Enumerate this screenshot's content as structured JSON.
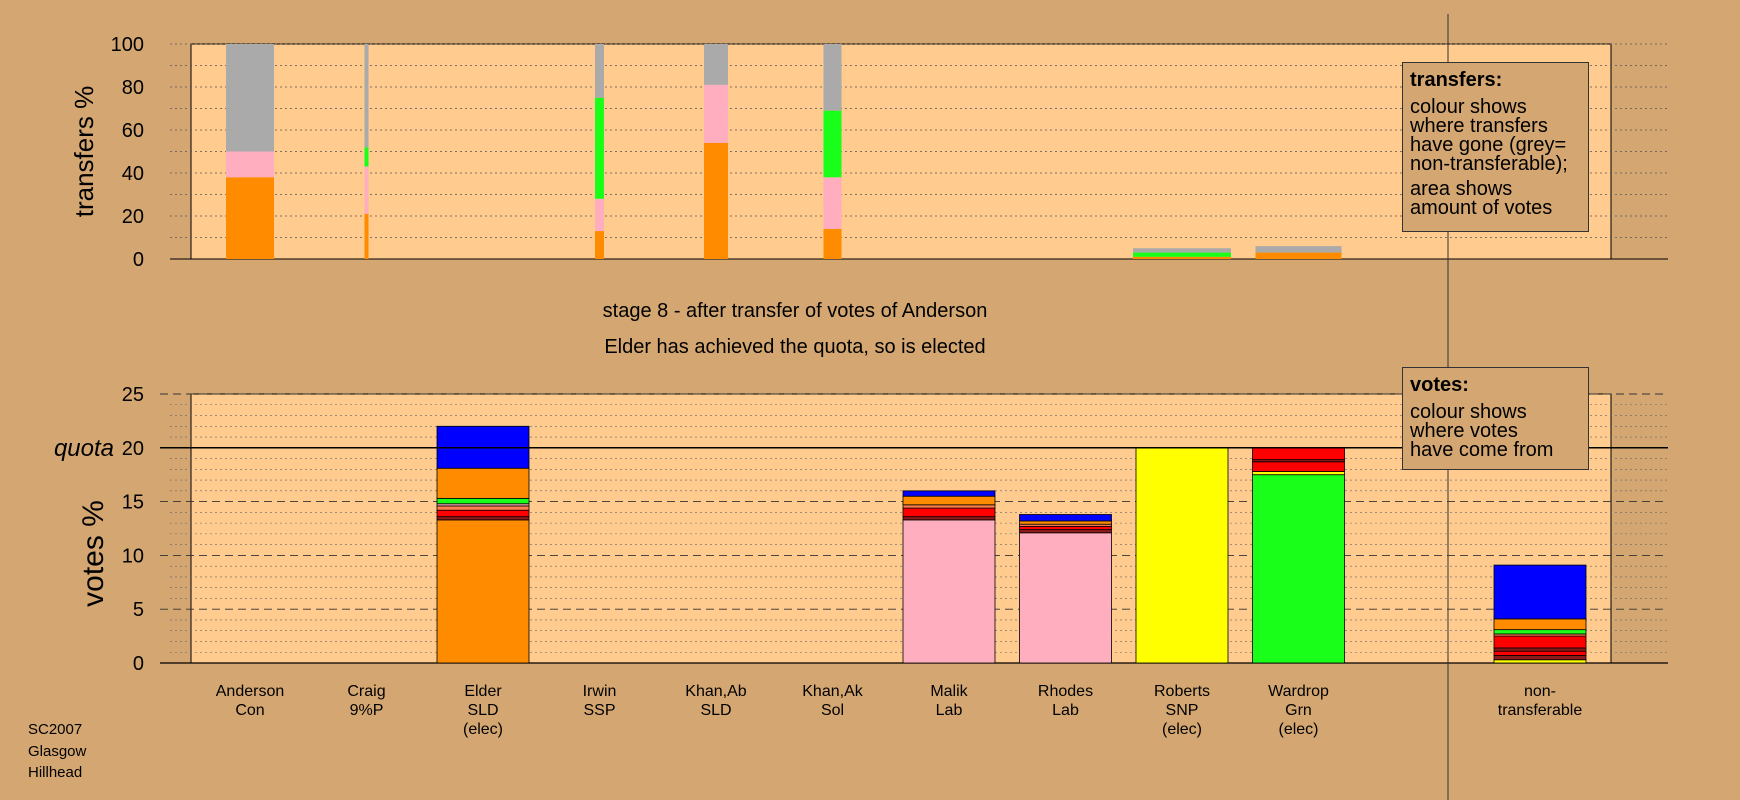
{
  "chart_data": {
    "type": "bar",
    "title": "stage 8 - after transfer of votes of Anderson",
    "subtitle": "Elder has achieved the quota, so is elected",
    "candidates": [
      {
        "name": "Anderson",
        "party": "Con",
        "note": ""
      },
      {
        "name": "Craig",
        "party": "9%P",
        "note": ""
      },
      {
        "name": "Elder",
        "party": "SLD",
        "note": "(elec)"
      },
      {
        "name": "Irwin",
        "party": "SSP",
        "note": ""
      },
      {
        "name": "Khan,Ab",
        "party": "SLD",
        "note": ""
      },
      {
        "name": "Khan,Ak",
        "party": "Sol",
        "note": ""
      },
      {
        "name": "Malik",
        "party": "Lab",
        "note": ""
      },
      {
        "name": "Rhodes",
        "party": "Lab",
        "note": ""
      },
      {
        "name": "Roberts",
        "party": "SNP",
        "note": "(elec)"
      },
      {
        "name": "Wardrop",
        "party": "Grn",
        "note": "(elec)"
      }
    ],
    "nontransferable_label": [
      "non-",
      "transferable"
    ],
    "colors": {
      "con": "#0000ff",
      "sld": "#ff8c00",
      "ssp": "#ff0000",
      "lab": "#ffaec0",
      "snp": "#ffff00",
      "grn": "#1aff1a",
      "nontransferable": "#aaaaaa",
      "sol": "#8b1a1a",
      "pp9": "#ff7f50",
      "plot_bg": "#ffcb8e",
      "page_bg": "#d4a772"
    },
    "transfers_panel": {
      "ylabel": "transfers %",
      "ylim": [
        0,
        100
      ],
      "yticks": [
        0,
        20,
        40,
        60,
        80,
        100
      ],
      "bars": [
        {
          "candidate": "Anderson",
          "segments": [
            {
              "party": "sld",
              "value": 38
            },
            {
              "party": "lab",
              "value": 12
            },
            {
              "party": "nontransferable",
              "value": 50
            }
          ]
        },
        {
          "candidate": "Craig",
          "segments": [
            {
              "party": "sld",
              "value": 21
            },
            {
              "party": "lab",
              "value": 22
            },
            {
              "party": "grn",
              "value": 9
            },
            {
              "party": "nontransferable",
              "value": 48
            }
          ]
        },
        {
          "candidate": "Irwin",
          "segments": [
            {
              "party": "sld",
              "value": 13
            },
            {
              "party": "lab",
              "value": 15
            },
            {
              "party": "grn",
              "value": 47
            },
            {
              "party": "nontransferable",
              "value": 25
            }
          ]
        },
        {
          "candidate": "Khan,Ab",
          "segments": [
            {
              "party": "sld",
              "value": 54
            },
            {
              "party": "lab",
              "value": 27
            },
            {
              "party": "nontransferable",
              "value": 19
            }
          ]
        },
        {
          "candidate": "Khan,Ak",
          "segments": [
            {
              "party": "sld",
              "value": 14
            },
            {
              "party": "lab",
              "value": 24
            },
            {
              "party": "grn",
              "value": 31
            },
            {
              "party": "nontransferable",
              "value": 31
            }
          ]
        },
        {
          "candidate": "Roberts",
          "segments": [
            {
              "party": "sld",
              "value": 1
            },
            {
              "party": "grn",
              "value": 2
            },
            {
              "party": "nontransferable",
              "value": 2
            }
          ]
        },
        {
          "candidate": "Wardrop",
          "segments": [
            {
              "party": "sld",
              "value": 3
            },
            {
              "party": "nontransferable",
              "value": 3
            }
          ]
        }
      ]
    },
    "votes_panel": {
      "ylabel": "votes %",
      "quota_label": "quota",
      "quota": 20,
      "ylim": [
        0,
        25
      ],
      "yticks": [
        0,
        5,
        10,
        15,
        20,
        25
      ],
      "bars": [
        {
          "candidate": "Elder",
          "segments": [
            {
              "party": "sld",
              "value": 13.3
            },
            {
              "party": "sol",
              "value": 0.3
            },
            {
              "party": "ssp",
              "value": 0.6
            },
            {
              "party": "pp9",
              "value": 0.4
            },
            {
              "party": "lab",
              "value": 0.2
            },
            {
              "party": "grn",
              "value": 0.5
            },
            {
              "party": "sld",
              "value": 2.8
            },
            {
              "party": "con",
              "value": 3.9
            }
          ]
        },
        {
          "candidate": "Malik",
          "segments": [
            {
              "party": "lab",
              "value": 13.3
            },
            {
              "party": "sol",
              "value": 0.3
            },
            {
              "party": "ssp",
              "value": 0.8
            },
            {
              "party": "pp9",
              "value": 0.3
            },
            {
              "party": "sld",
              "value": 0.8
            },
            {
              "party": "con",
              "value": 0.5
            }
          ]
        },
        {
          "candidate": "Rhodes",
          "segments": [
            {
              "party": "lab",
              "value": 12.1
            },
            {
              "party": "sol",
              "value": 0.3
            },
            {
              "party": "ssp",
              "value": 0.3
            },
            {
              "party": "pp9",
              "value": 0.2
            },
            {
              "party": "sld",
              "value": 0.3
            },
            {
              "party": "con",
              "value": 0.6
            }
          ]
        },
        {
          "candidate": "Roberts",
          "segments": [
            {
              "party": "snp",
              "value": 20
            }
          ]
        },
        {
          "candidate": "Wardrop",
          "segments": [
            {
              "party": "grn",
              "value": 17.5
            },
            {
              "party": "snp",
              "value": 0.3
            },
            {
              "party": "ssp",
              "value": 0.9
            },
            {
              "party": "sol",
              "value": 0.2
            },
            {
              "party": "ssp",
              "value": 1.1
            }
          ]
        },
        {
          "candidate": "non-transferable",
          "segments": [
            {
              "party": "snp",
              "value": 0.3
            },
            {
              "party": "sol",
              "value": 0.4
            },
            {
              "party": "ssp",
              "value": 0.4
            },
            {
              "party": "sol",
              "value": 0.3
            },
            {
              "party": "ssp",
              "value": 1.1
            },
            {
              "party": "pp9",
              "value": 0.2
            },
            {
              "party": "grn",
              "value": 0.4
            },
            {
              "party": "sld",
              "value": 1.0
            },
            {
              "party": "con",
              "value": 5.0
            }
          ]
        }
      ]
    }
  },
  "legends": {
    "transfers": {
      "title": "transfers:",
      "lines1": [
        "colour shows",
        "where transfers",
        "have gone (grey=",
        "non-transferable);"
      ],
      "lines2": [
        "area shows",
        "amount of votes"
      ]
    },
    "votes": {
      "title": "votes:",
      "lines": [
        "colour shows",
        "where votes",
        "have come from"
      ]
    }
  },
  "footer": [
    "SC2007",
    "Glasgow",
    "Hillhead"
  ]
}
